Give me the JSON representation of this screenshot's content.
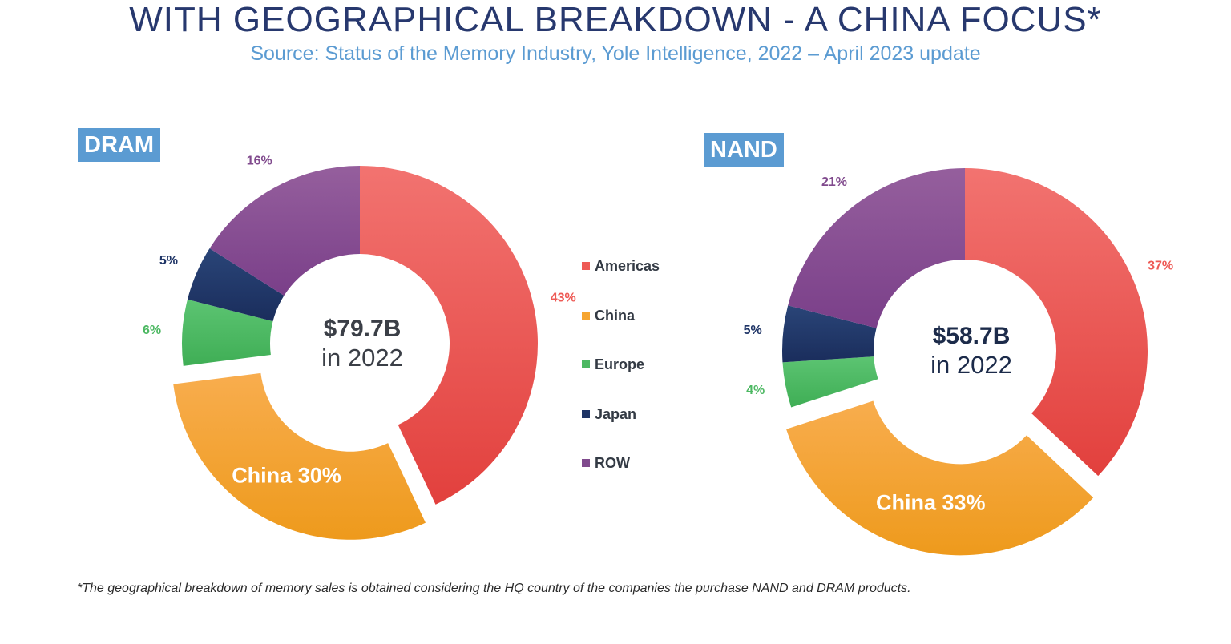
{
  "header": {
    "title": "WITH GEOGRAPHICAL BREAKDOWN - A CHINA FOCUS*",
    "subtitle": "Source: Status of the Memory Industry, Yole Intelligence, 2022 – April 2023 update"
  },
  "colors": {
    "Americas": "#ee5a55",
    "China": "#f6a530",
    "Europe": "#4cb862",
    "Japan": "#1e3466",
    "ROW": "#804a8d",
    "label_bg": "#5b9bd2"
  },
  "legend": {
    "items": [
      "Americas",
      "China",
      "Europe",
      "Japan",
      "ROW"
    ]
  },
  "chart_data": [
    {
      "type": "pie",
      "variant": "donut",
      "title": "DRAM",
      "center_value": "$79.7B",
      "center_caption": "in 2022",
      "categories": [
        "Americas",
        "China",
        "Europe",
        "Japan",
        "ROW"
      ],
      "values": [
        43,
        30,
        6,
        5,
        16
      ],
      "labels": [
        "43%",
        "China 30%",
        "6%",
        "5%",
        "16%"
      ],
      "exploded": "China"
    },
    {
      "type": "pie",
      "variant": "donut",
      "title": "NAND",
      "center_value": "$58.7B",
      "center_caption": "in 2022",
      "categories": [
        "Americas",
        "China",
        "Europe",
        "Japan",
        "ROW"
      ],
      "values": [
        37,
        33,
        4,
        5,
        21
      ],
      "labels": [
        "37%",
        "China 33%",
        "4%",
        "5%",
        "21%"
      ],
      "exploded": "China"
    }
  ],
  "footnote": "*The geographical breakdown of memory sales is obtained considering the HQ country of the companies the purchase NAND and DRAM products."
}
